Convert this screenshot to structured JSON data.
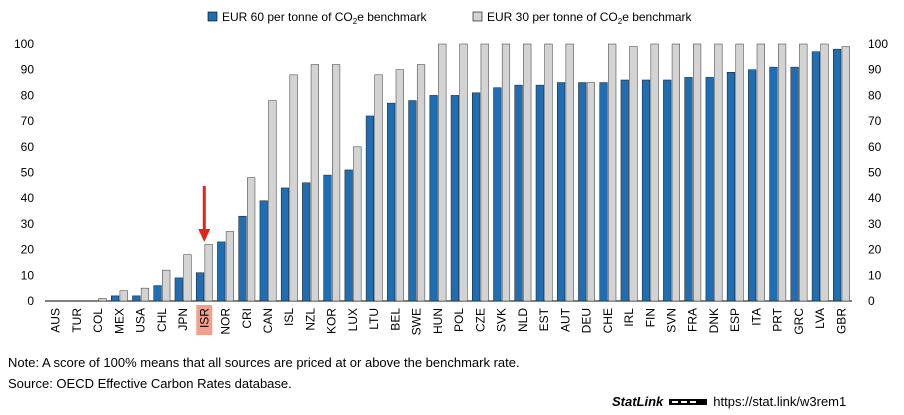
{
  "colors": {
    "eur60": "#1f6eb4",
    "eur30": "#d3d3d3",
    "highlight": "#f2a08c",
    "arrow": "#e2231a"
  },
  "chart_data": {
    "type": "bar",
    "categories": [
      "AUS",
      "TUR",
      "COL",
      "MEX",
      "USA",
      "CHL",
      "JPN",
      "ISR",
      "NOR",
      "CRI",
      "CAN",
      "ISL",
      "NZL",
      "KOR",
      "LUX",
      "LTU",
      "BEL",
      "SWE",
      "HUN",
      "POL",
      "CZE",
      "SVK",
      "NLD",
      "EST",
      "AUT",
      "DEU",
      "CHE",
      "IRL",
      "FIN",
      "SVN",
      "FRA",
      "DNK",
      "ESP",
      "ITA",
      "PRT",
      "GRC",
      "LVA",
      "GBR"
    ],
    "series": [
      {
        "name": "EUR 60 per tonne of CO2e benchmark",
        "legend_main": "EUR 60 per tonne of CO",
        "legend_sub": "2",
        "legend_tail": "e benchmark",
        "values": [
          0,
          0,
          0,
          2,
          2,
          6,
          9,
          11,
          23,
          33,
          39,
          44,
          46,
          49,
          51,
          72,
          77,
          78,
          80,
          80,
          81,
          83,
          84,
          84,
          85,
          85,
          85,
          86,
          86,
          86,
          87,
          87,
          89,
          90,
          91,
          91,
          97,
          98
        ]
      },
      {
        "name": "EUR 30 per tonne of CO2e benchmark",
        "legend_main": "EUR 30 per tonne of CO",
        "legend_sub": "2",
        "legend_tail": "e benchmark",
        "values": [
          0,
          0,
          1,
          4,
          5,
          12,
          18,
          22,
          27,
          48,
          78,
          88,
          92,
          92,
          60,
          88,
          90,
          92,
          100,
          100,
          100,
          100,
          100,
          100,
          100,
          85,
          100,
          99,
          100,
          100,
          100,
          100,
          100,
          100,
          100,
          100,
          100,
          99
        ]
      }
    ],
    "highlight_category": "ISR",
    "ylim": [
      0,
      100
    ],
    "yticks": [
      0,
      10,
      20,
      30,
      40,
      50,
      60,
      70,
      80,
      90,
      100
    ],
    "grid": false,
    "legend_position": "top"
  },
  "notes": {
    "note": "Note: A score of 100% means that all sources are priced at or above the benchmark rate.",
    "source": "Source: OECD Effective Carbon Rates database."
  },
  "statlink": {
    "brand": "StatLink",
    "url": "https://stat.link/w3rem1"
  }
}
